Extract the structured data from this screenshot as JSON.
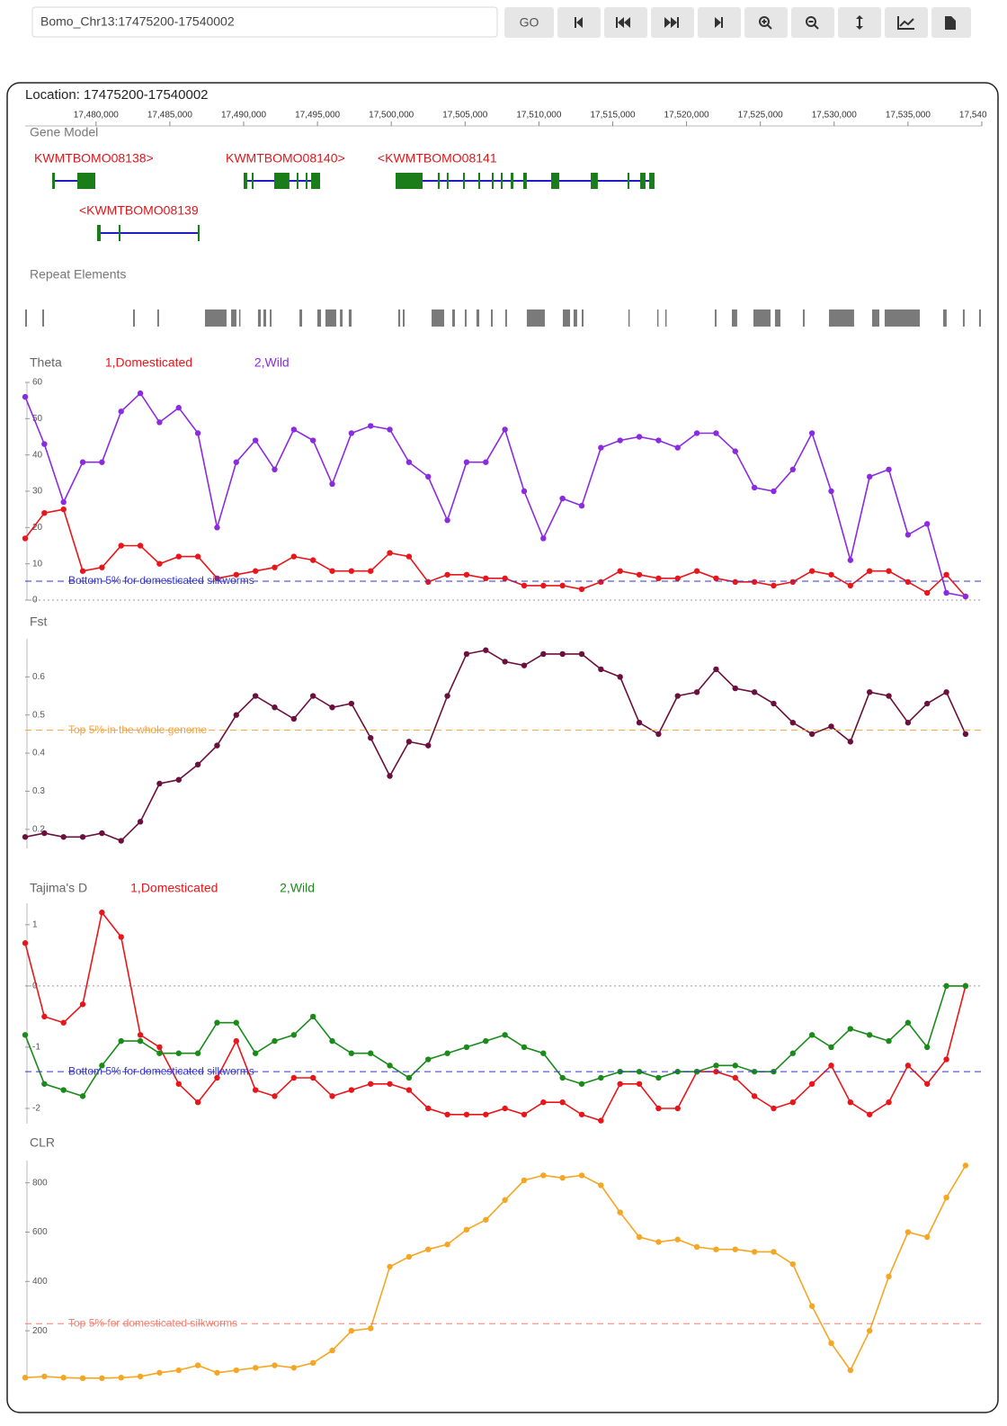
{
  "toolbar": {
    "location_input": "Bomo_Chr13:17475200-17540002",
    "go_button": "GO"
  },
  "ruler": {
    "location": "Location: 17475200-17540002",
    "xlim": [
      17475200,
      17540002
    ],
    "xticks": [
      {
        "value": 17480000,
        "label": "17,480,000"
      },
      {
        "value": 17485000,
        "label": "17,485,000"
      },
      {
        "value": 17490000,
        "label": "17,490,000"
      },
      {
        "value": 17495000,
        "label": "17,495,000"
      },
      {
        "value": 17500000,
        "label": "17,500,000"
      },
      {
        "value": 17505000,
        "label": "17,505,000"
      },
      {
        "value": 17510000,
        "label": "17,510,000"
      },
      {
        "value": 17515000,
        "label": "17,515,000"
      },
      {
        "value": 17520000,
        "label": "17,520,000"
      },
      {
        "value": 17525000,
        "label": "17,525,000"
      },
      {
        "value": 17530000,
        "label": "17,530,000"
      },
      {
        "value": 17535000,
        "label": "17,535,000"
      },
      {
        "value": 17540000,
        "label": "17,540,000"
      }
    ]
  },
  "gene_model": {
    "title": "Gene Model",
    "genes": [
      {
        "name": "KWMTBOMO08138>",
        "start": 17477030,
        "end": 17479950,
        "exons": [
          [
            17477030,
            17477210
          ],
          [
            17478730,
            17479950
          ]
        ]
      },
      {
        "name": "<KWMTBOMO08139",
        "start": 17480070,
        "end": 17487020,
        "exons": [
          [
            17480070,
            17480320
          ],
          [
            17481530,
            17481660
          ],
          [
            17486890,
            17487020
          ]
        ]
      },
      {
        "name": "KWMTBOMO08140>",
        "start": 17490000,
        "end": 17495180,
        "exons": [
          [
            17490000,
            17490240
          ],
          [
            17490550,
            17490670
          ],
          [
            17492070,
            17493100
          ],
          [
            17493590,
            17493710
          ],
          [
            17494200,
            17494320
          ],
          [
            17494570,
            17495180
          ]
        ]
      },
      {
        "name": "<KWMTBOMO08141",
        "start": 17500290,
        "end": 17517830,
        "exons": [
          [
            17500290,
            17502120
          ],
          [
            17503150,
            17503280
          ],
          [
            17503760,
            17503880
          ],
          [
            17504860,
            17504980
          ],
          [
            17505890,
            17506020
          ],
          [
            17506810,
            17506930
          ],
          [
            17507420,
            17507540
          ],
          [
            17508090,
            17508270
          ],
          [
            17508940,
            17509180
          ],
          [
            17510830,
            17511380
          ],
          [
            17513510,
            17513990
          ],
          [
            17516000,
            17516130
          ],
          [
            17516860,
            17517220
          ],
          [
            17517470,
            17517830
          ]
        ]
      }
    ]
  },
  "repeat_elements": {
    "title": "Repeat Elements",
    "blocks": [
      [
        17475200,
        17475320
      ],
      [
        17476360,
        17476480
      ],
      [
        17482510,
        17482630
      ],
      [
        17484150,
        17484270
      ],
      [
        17487380,
        17488840
      ],
      [
        17489150,
        17489510
      ],
      [
        17489690,
        17489760
      ],
      [
        17490970,
        17491160
      ],
      [
        17491340,
        17491520
      ],
      [
        17491770,
        17491890
      ],
      [
        17493780,
        17493960
      ],
      [
        17494990,
        17495240
      ],
      [
        17495540,
        17496270
      ],
      [
        17496520,
        17496700
      ],
      [
        17497120,
        17497310
      ],
      [
        17500470,
        17500600
      ],
      [
        17500780,
        17500900
      ],
      [
        17502730,
        17503580
      ],
      [
        17504130,
        17504310
      ],
      [
        17504980,
        17505100
      ],
      [
        17505770,
        17505960
      ],
      [
        17506750,
        17506870
      ],
      [
        17507720,
        17507840
      ],
      [
        17509180,
        17510400
      ],
      [
        17511620,
        17512110
      ],
      [
        17512350,
        17512590
      ],
      [
        17512900,
        17513020
      ],
      [
        17516060,
        17516130
      ],
      [
        17518010,
        17518070
      ],
      [
        17518560,
        17518620
      ],
      [
        17521910,
        17522030
      ],
      [
        17523070,
        17523430
      ],
      [
        17524530,
        17525690
      ],
      [
        17525990,
        17526360
      ],
      [
        17527880,
        17528000
      ],
      [
        17529650,
        17531350
      ],
      [
        17532570,
        17533060
      ],
      [
        17533420,
        17535800
      ],
      [
        17537380,
        17537620
      ],
      [
        17538720,
        17538840
      ],
      [
        17539820,
        17539940
      ]
    ]
  },
  "chart_data": [
    {
      "type": "line",
      "title": "Theta",
      "xlim": [
        17475200,
        17540002
      ],
      "ylim": [
        0,
        60
      ],
      "yticks": [
        0,
        10,
        20,
        30,
        40,
        50,
        60
      ],
      "zero_line": true,
      "grid": false,
      "threshold": {
        "value": 5.2,
        "label": "Bottom 5% for domesticated silkworms",
        "color": "#3535c8"
      },
      "x": [
        17475200,
        17476500,
        17477800,
        17479100,
        17480400,
        17481700,
        17483000,
        17484300,
        17485600,
        17486900,
        17488200,
        17489500,
        17490800,
        17492100,
        17493400,
        17494700,
        17496000,
        17497300,
        17498600,
        17499900,
        17501200,
        17502500,
        17503800,
        17505100,
        17506400,
        17507700,
        17509000,
        17510300,
        17511600,
        17512900,
        17514200,
        17515500,
        17516800,
        17518100,
        17519400,
        17520700,
        17522000,
        17523300,
        17524600,
        17525900,
        17527200,
        17528500,
        17529800,
        17531100,
        17532400,
        17533700,
        17535000,
        17536300,
        17537600,
        17538900
      ],
      "series": [
        {
          "name": "1,Domesticated",
          "color": "#e8161b",
          "values": [
            17,
            24,
            25,
            8,
            9,
            15,
            15,
            10,
            12,
            12,
            6,
            7,
            8,
            9,
            12,
            11,
            8,
            8,
            8,
            13,
            12,
            5,
            7,
            7,
            6,
            6,
            4,
            4,
            4,
            3,
            5,
            8,
            7,
            6,
            6,
            8,
            6,
            5,
            5,
            4,
            5,
            8,
            7,
            4,
            8,
            8,
            5,
            2,
            7,
            1
          ]
        },
        {
          "name": "2,Wild",
          "color": "#8a2be2",
          "values": [
            56,
            43,
            27,
            38,
            38,
            52,
            57,
            49,
            53,
            46,
            20,
            38,
            44,
            36,
            47,
            44,
            32,
            46,
            48,
            47,
            38,
            34,
            22,
            38,
            38,
            47,
            30,
            17,
            28,
            26,
            42,
            44,
            45,
            44,
            42,
            46,
            46,
            41,
            31,
            30,
            36,
            46,
            30,
            11,
            34,
            36,
            18,
            21,
            2,
            1
          ]
        }
      ]
    },
    {
      "type": "line",
      "title": "Fst",
      "xlim": [
        17475200,
        17540002
      ],
      "ylim": [
        0.15,
        0.7
      ],
      "yticks": [
        0.2,
        0.3,
        0.4,
        0.5,
        0.6
      ],
      "zero_line": false,
      "grid": false,
      "threshold": {
        "value": 0.46,
        "label": "Top 5% in the whole genome",
        "color": "#f5a040"
      },
      "x": [
        17475200,
        17476500,
        17477800,
        17479100,
        17480400,
        17481700,
        17483000,
        17484300,
        17485600,
        17486900,
        17488200,
        17489500,
        17490800,
        17492100,
        17493400,
        17494700,
        17496000,
        17497300,
        17498600,
        17499900,
        17501200,
        17502500,
        17503800,
        17505100,
        17506400,
        17507700,
        17509000,
        17510300,
        17511600,
        17512900,
        17514200,
        17515500,
        17516800,
        17518100,
        17519400,
        17520700,
        17522000,
        17523300,
        17524600,
        17525900,
        17527200,
        17528500,
        17529800,
        17531100,
        17532400,
        17533700,
        17535000,
        17536300,
        17537600,
        17538900
      ],
      "series": [
        {
          "name": "Fst",
          "color": "#6b0f3c",
          "values": [
            0.18,
            0.19,
            0.18,
            0.18,
            0.19,
            0.17,
            0.22,
            0.32,
            0.33,
            0.37,
            0.42,
            0.5,
            0.55,
            0.52,
            0.49,
            0.55,
            0.52,
            0.53,
            0.44,
            0.34,
            0.43,
            0.42,
            0.55,
            0.66,
            0.67,
            0.64,
            0.63,
            0.66,
            0.66,
            0.66,
            0.62,
            0.6,
            0.48,
            0.45,
            0.55,
            0.56,
            0.62,
            0.57,
            0.56,
            0.53,
            0.48,
            0.45,
            0.47,
            0.43,
            0.56,
            0.55,
            0.48,
            0.53,
            0.56,
            0.45
          ]
        }
      ]
    },
    {
      "type": "line",
      "title": "Tajima's D",
      "xlim": [
        17475200,
        17540002
      ],
      "ylim": [
        -2.25,
        1.35
      ],
      "yticks": [
        -2,
        -1,
        0,
        1
      ],
      "zero_line": true,
      "grid": false,
      "threshold": {
        "value": -1.4,
        "label": "Bottom 5% for domesticated silkworms",
        "color": "#3535c8"
      },
      "x": [
        17475200,
        17476500,
        17477800,
        17479100,
        17480400,
        17481700,
        17483000,
        17484300,
        17485600,
        17486900,
        17488200,
        17489500,
        17490800,
        17492100,
        17493400,
        17494700,
        17496000,
        17497300,
        17498600,
        17499900,
        17501200,
        17502500,
        17503800,
        17505100,
        17506400,
        17507700,
        17509000,
        17510300,
        17511600,
        17512900,
        17514200,
        17515500,
        17516800,
        17518100,
        17519400,
        17520700,
        17522000,
        17523300,
        17524600,
        17525900,
        17527200,
        17528500,
        17529800,
        17531100,
        17532400,
        17533700,
        17535000,
        17536300,
        17537600,
        17538900
      ],
      "series": [
        {
          "name": "1,Domesticated",
          "color": "#e8161b",
          "values": [
            0.7,
            -0.5,
            -0.6,
            -0.3,
            1.2,
            0.8,
            -0.8,
            -1.0,
            -1.6,
            -1.9,
            -1.5,
            -0.9,
            -1.7,
            -1.8,
            -1.5,
            -1.5,
            -1.8,
            -1.7,
            -1.6,
            -1.6,
            -1.7,
            -2.0,
            -2.1,
            -2.1,
            -2.1,
            -2.0,
            -2.1,
            -1.9,
            -1.9,
            -2.1,
            -2.2,
            -1.6,
            -1.6,
            -2.0,
            -2.0,
            -1.4,
            -1.4,
            -1.5,
            -1.8,
            -2.0,
            -1.9,
            -1.6,
            -1.3,
            -1.9,
            -2.1,
            -1.9,
            -1.3,
            -1.6,
            -1.2,
            0.0
          ]
        },
        {
          "name": "2,Wild",
          "color": "#1a8a1a",
          "values": [
            -0.8,
            -1.6,
            -1.7,
            -1.8,
            -1.3,
            -0.9,
            -0.9,
            -1.1,
            -1.1,
            -1.1,
            -0.6,
            -0.6,
            -1.1,
            -0.9,
            -0.8,
            -0.5,
            -0.9,
            -1.1,
            -1.1,
            -1.3,
            -1.5,
            -1.2,
            -1.1,
            -1.0,
            -0.9,
            -0.8,
            -1.0,
            -1.1,
            -1.5,
            -1.6,
            -1.5,
            -1.4,
            -1.4,
            -1.5,
            -1.4,
            -1.4,
            -1.3,
            -1.3,
            -1.4,
            -1.4,
            -1.1,
            -0.8,
            -1.0,
            -0.7,
            -0.8,
            -0.9,
            -0.6,
            -1.0,
            0.0,
            0.0
          ]
        }
      ]
    },
    {
      "type": "line",
      "title": "CLR",
      "xlim": [
        17475200,
        17540002
      ],
      "ylim": [
        0,
        890
      ],
      "yticks": [
        200,
        400,
        600,
        800
      ],
      "zero_line": false,
      "grid": false,
      "threshold": {
        "value": 229,
        "label": "Top 5% for domesticated silkworms",
        "color": "#f08070"
      },
      "x": [
        17475200,
        17476500,
        17477800,
        17479100,
        17480400,
        17481700,
        17483000,
        17484300,
        17485600,
        17486900,
        17488200,
        17489500,
        17490800,
        17492100,
        17493400,
        17494700,
        17496000,
        17497300,
        17498600,
        17499900,
        17501200,
        17502500,
        17503800,
        17505100,
        17506400,
        17507700,
        17509000,
        17510300,
        17511600,
        17512900,
        17514200,
        17515500,
        17516800,
        17518100,
        17519400,
        17520700,
        17522000,
        17523300,
        17524600,
        17525900,
        17527200,
        17528500,
        17529800,
        17531100,
        17532400,
        17533700,
        17535000,
        17536300,
        17537600,
        17538900
      ],
      "series": [
        {
          "name": "CLR",
          "color": "#f5a623",
          "values": [
            10,
            15,
            10,
            8,
            8,
            10,
            15,
            30,
            40,
            60,
            30,
            40,
            50,
            60,
            50,
            70,
            120,
            200,
            210,
            460,
            500,
            530,
            550,
            610,
            650,
            730,
            810,
            830,
            820,
            830,
            790,
            680,
            580,
            560,
            570,
            540,
            530,
            530,
            520,
            520,
            470,
            300,
            150,
            40,
            200,
            420,
            600,
            580,
            740,
            870
          ]
        }
      ]
    }
  ]
}
